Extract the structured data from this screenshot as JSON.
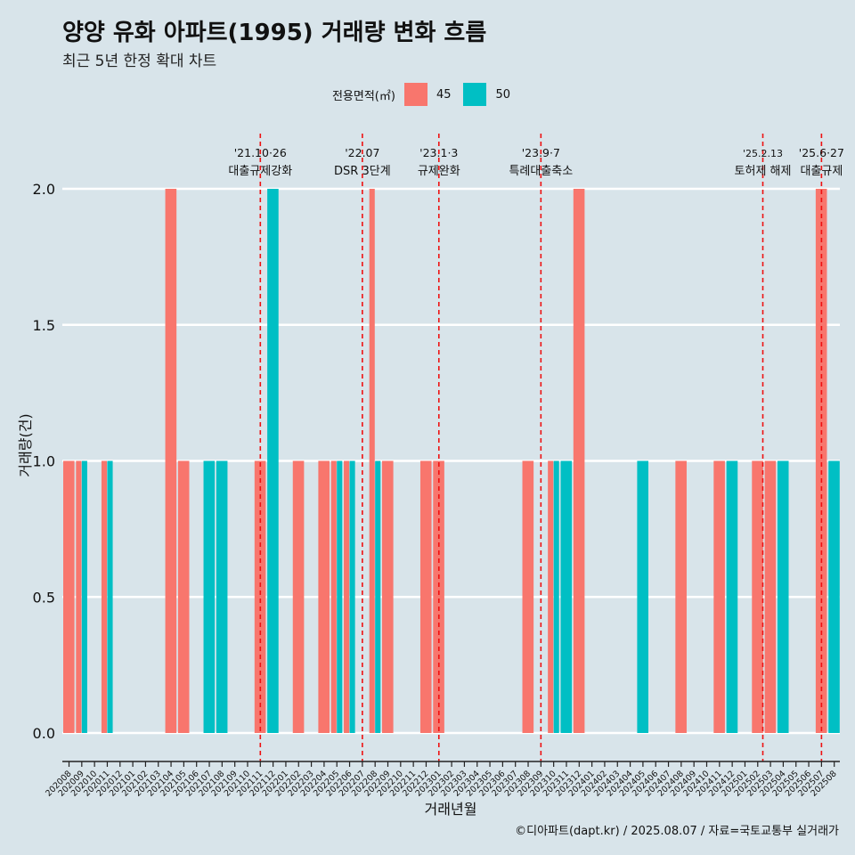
{
  "title": "양양 유화 아파트(1995) 거래량 변화 흐름",
  "subtitle": "최근 5년 한정 확대 차트",
  "caption": "©디아파트(dapt.kr) / 2025.08.07 / 자료=국토교통부 실거래가",
  "legend": {
    "title": "전용면적(㎡)",
    "items": [
      {
        "label": "45",
        "color": "#f8766d"
      },
      {
        "label": "50",
        "color": "#00bfc4"
      }
    ]
  },
  "chart_data": {
    "type": "bar",
    "xlabel": "거래년월",
    "ylabel": "거래량(건)",
    "ylim": [
      0,
      2
    ],
    "yticks": [
      "0.0",
      "0.5",
      "1.0",
      "1.5",
      "2.0"
    ],
    "grid": true,
    "legend_position": "top",
    "categories": [
      "202008",
      "202009",
      "202010",
      "202011",
      "202012",
      "202101",
      "202102",
      "202103",
      "202104",
      "202105",
      "202106",
      "202107",
      "202108",
      "202109",
      "202110",
      "202111",
      "202112",
      "202201",
      "202202",
      "202203",
      "202204",
      "202205",
      "202206",
      "202207",
      "202208",
      "202209",
      "202210",
      "202211",
      "202212",
      "202301",
      "202302",
      "202303",
      "202304",
      "202305",
      "202306",
      "202307",
      "202308",
      "202309",
      "202310",
      "202311",
      "202312",
      "202401",
      "202402",
      "202403",
      "202404",
      "202405",
      "202406",
      "202407",
      "202408",
      "202409",
      "202410",
      "202411",
      "202412",
      "202501",
      "202502",
      "202503",
      "202504",
      "202505",
      "202506",
      "202507",
      "202508"
    ],
    "bars": [
      {
        "month": "202008",
        "series": "45",
        "value": 1,
        "slot": 0,
        "slots": 1
      },
      {
        "month": "202009",
        "series": "45",
        "value": 1,
        "slot": 0,
        "slots": 2
      },
      {
        "month": "202009",
        "series": "50",
        "value": 1,
        "slot": 1,
        "slots": 2
      },
      {
        "month": "202011",
        "series": "45",
        "value": 1,
        "slot": 0,
        "slots": 2
      },
      {
        "month": "202011",
        "series": "50",
        "value": 1,
        "slot": 1,
        "slots": 2
      },
      {
        "month": "202104",
        "series": "45",
        "value": 2,
        "slot": 0,
        "slots": 1
      },
      {
        "month": "202105",
        "series": "45",
        "value": 1,
        "slot": 0,
        "slots": 1
      },
      {
        "month": "202107",
        "series": "50",
        "value": 1,
        "slot": 0,
        "slots": 1
      },
      {
        "month": "202108",
        "series": "50",
        "value": 1,
        "slot": 0,
        "slots": 1
      },
      {
        "month": "202111",
        "series": "45",
        "value": 1,
        "slot": 0,
        "slots": 1
      },
      {
        "month": "202112",
        "series": "50",
        "value": 2,
        "slot": 0,
        "slots": 1
      },
      {
        "month": "202202",
        "series": "45",
        "value": 1,
        "slot": 0,
        "slots": 1
      },
      {
        "month": "202204",
        "series": "45",
        "value": 1,
        "slot": 0,
        "slots": 1
      },
      {
        "month": "202205",
        "series": "45",
        "value": 1,
        "slot": 0,
        "slots": 2
      },
      {
        "month": "202205",
        "series": "50",
        "value": 1,
        "slot": 1,
        "slots": 2
      },
      {
        "month": "202206",
        "series": "45",
        "value": 1,
        "slot": 0,
        "slots": 2
      },
      {
        "month": "202206",
        "series": "50",
        "value": 1,
        "slot": 1,
        "slots": 2
      },
      {
        "month": "202208",
        "series": "45",
        "value": 2,
        "slot": 0,
        "slots": 2
      },
      {
        "month": "202208",
        "series": "50",
        "value": 1,
        "slot": 1,
        "slots": 2
      },
      {
        "month": "202209",
        "series": "45",
        "value": 1,
        "slot": 0,
        "slots": 1
      },
      {
        "month": "202212",
        "series": "45",
        "value": 1,
        "slot": 0,
        "slots": 1
      },
      {
        "month": "202301",
        "series": "45",
        "value": 1,
        "slot": 0,
        "slots": 1
      },
      {
        "month": "202308",
        "series": "45",
        "value": 1,
        "slot": 0,
        "slots": 1
      },
      {
        "month": "202310",
        "series": "45",
        "value": 1,
        "slot": 0,
        "slots": 2
      },
      {
        "month": "202310",
        "series": "50",
        "value": 1,
        "slot": 1,
        "slots": 2
      },
      {
        "month": "202311",
        "series": "50",
        "value": 1,
        "slot": 0,
        "slots": 1
      },
      {
        "month": "202312",
        "series": "45",
        "value": 2,
        "slot": 0,
        "slots": 1
      },
      {
        "month": "202405",
        "series": "50",
        "value": 1,
        "slot": 0,
        "slots": 1
      },
      {
        "month": "202408",
        "series": "45",
        "value": 1,
        "slot": 0,
        "slots": 1
      },
      {
        "month": "202411",
        "series": "45",
        "value": 1,
        "slot": 0,
        "slots": 1
      },
      {
        "month": "202412",
        "series": "50",
        "value": 1,
        "slot": 0,
        "slots": 1
      },
      {
        "month": "202502",
        "series": "45",
        "value": 1,
        "slot": 0,
        "slots": 1
      },
      {
        "month": "202503",
        "series": "45",
        "value": 1,
        "slot": 0,
        "slots": 1
      },
      {
        "month": "202504",
        "series": "50",
        "value": 1,
        "slot": 0,
        "slots": 1
      },
      {
        "month": "202507",
        "series": "45",
        "value": 2,
        "slot": 0,
        "slots": 1
      },
      {
        "month": "202508",
        "series": "50",
        "value": 1,
        "slot": 0,
        "slots": 1
      }
    ],
    "events": [
      {
        "month": "202111",
        "date": "'21.10·26",
        "label": "대출규제강화",
        "offset": 0
      },
      {
        "month": "202207",
        "date": "'22.07",
        "label": "DSR 3단계",
        "offset": 0
      },
      {
        "month": "202301",
        "date": "'23.1·3",
        "label": "규제완화",
        "offset": 0
      },
      {
        "month": "202309",
        "date": "'23.9·7",
        "label": "특례대출축소",
        "offset": 0
      },
      {
        "month": "202503",
        "date": "'25.2.13",
        "label": "토허제 해제",
        "offset": -0.6
      },
      {
        "month": "202507",
        "date": "'25.6·27",
        "label": "대출규제",
        "offset": 0
      }
    ]
  }
}
